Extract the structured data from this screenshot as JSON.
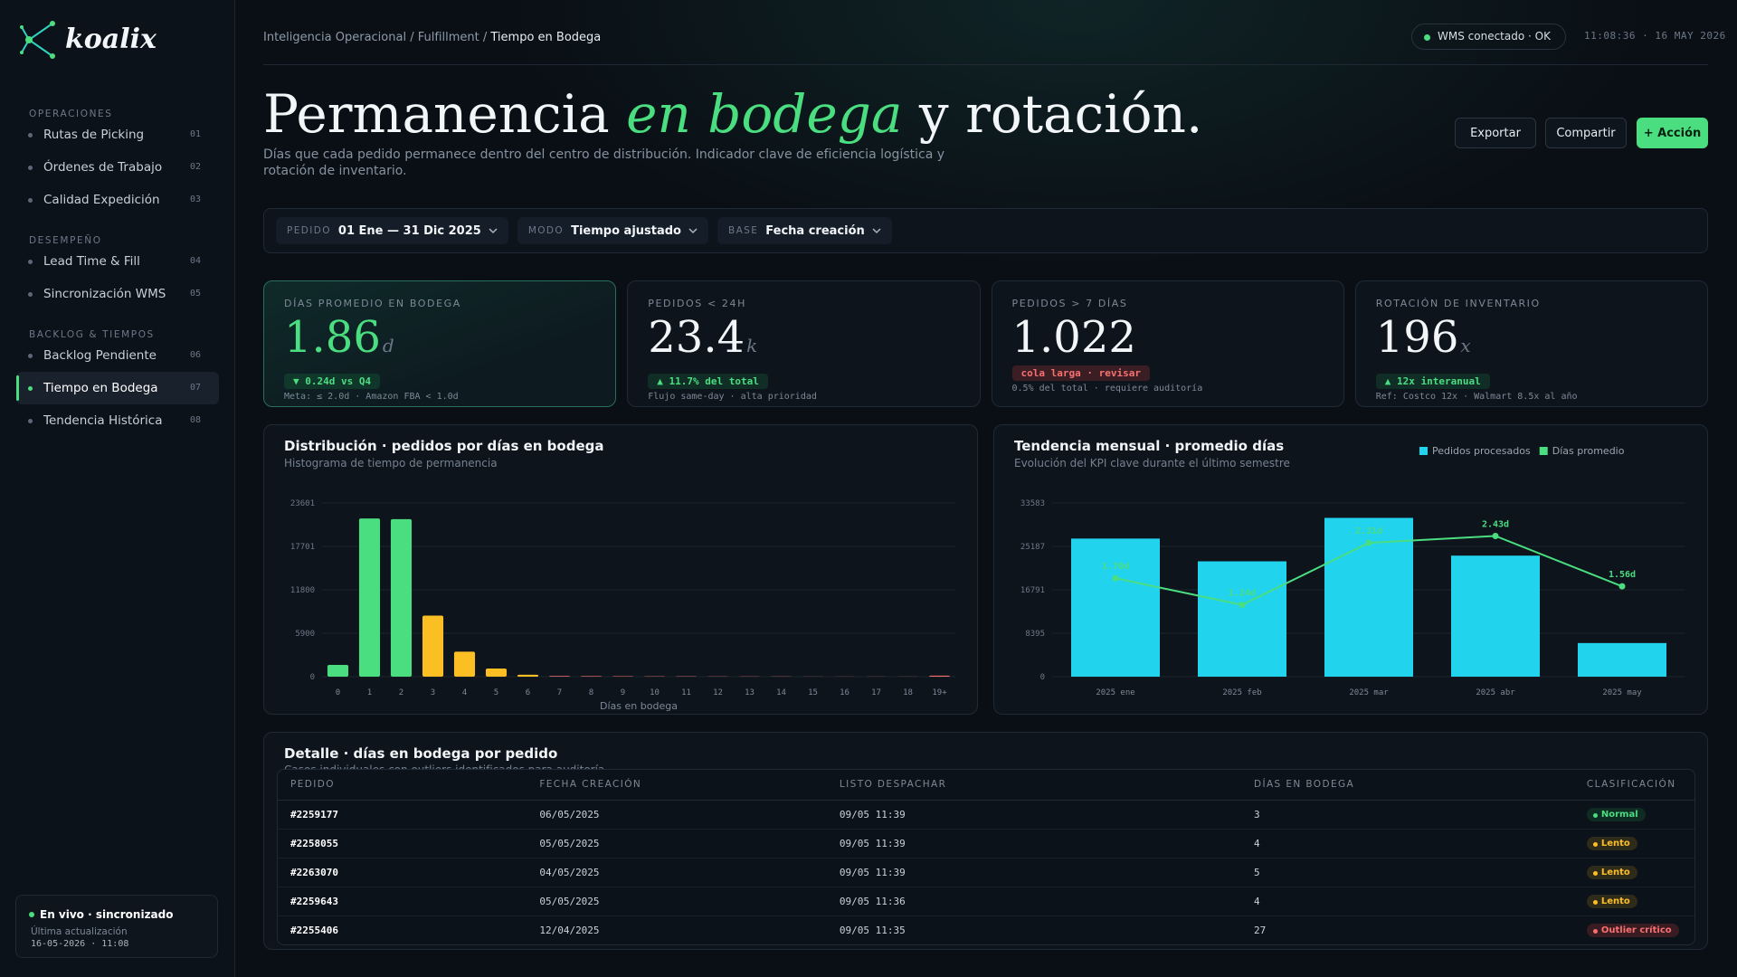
{
  "sidebar": {
    "brand": "koalix",
    "sections": [
      {
        "title": "OPERACIONES",
        "items": [
          {
            "label": "Rutas de Picking",
            "num": "01"
          },
          {
            "label": "Órdenes de Trabajo",
            "num": "02"
          },
          {
            "label": "Calidad Expedición",
            "num": "03"
          }
        ]
      },
      {
        "title": "DESEMPEÑO",
        "items": [
          {
            "label": "Lead Time & Fill",
            "num": "04"
          },
          {
            "label": "Sincronización WMS",
            "num": "05"
          }
        ]
      },
      {
        "title": "BACKLOG & TIEMPOS",
        "items": [
          {
            "label": "Backlog Pendiente",
            "num": "06"
          },
          {
            "label": "Tiempo en Bodega",
            "num": "07",
            "active": true
          },
          {
            "label": "Tendencia Histórica",
            "num": "08"
          }
        ]
      }
    ],
    "status": {
      "title": "En vivo · sincronizado",
      "label": "Última actualización",
      "time": "16-05-2026 · 11:08"
    }
  },
  "header": {
    "breadcrumb": "Inteligencia Operacional / Fulfillment / ",
    "breadcrumb_current": "Tiempo en Bodega",
    "connection": "WMS conectado · OK",
    "clock": "11:08:36 · 16 MAY 2026",
    "title": [
      "Permanencia ",
      "en bodega",
      " y rotación."
    ],
    "subtitle": "Días que cada pedido permanece dentro del centro de distribución. Indicador clave de eficiencia logística y rotación de inventario.",
    "buttons": [
      "Exportar",
      "Compartir",
      "+ Acción"
    ]
  },
  "filters": [
    {
      "label": "PEDIDO",
      "value": "01 Ene — 31 Dic 2025"
    },
    {
      "label": "MODO",
      "value": "Tiempo ajustado"
    },
    {
      "label": "BASE",
      "value": "Fecha creación"
    }
  ],
  "kpis": [
    {
      "label": "DÍAS PROMEDIO EN BODEGA",
      "value": "1.86",
      "unit": "d",
      "badge": "▼ 0.24d vs Q4",
      "tone": "good",
      "note": "Meta: ≤ 2.0d · Amazon FBA < 1.0d",
      "highlight": true
    },
    {
      "label": "PEDIDOS < 24H",
      "value": "23.4",
      "unit": "k",
      "badge": "▲ 11.7% del total",
      "tone": "good",
      "note": "Flujo same-day · alta prioridad"
    },
    {
      "label": "PEDIDOS > 7 DÍAS",
      "value": "1.022",
      "badge": "cola larga · revisar",
      "tone": "bad",
      "note": "0.5% del total · requiere auditoría"
    },
    {
      "label": "ROTACIÓN DE INVENTARIO",
      "value": "196",
      "unit": "x",
      "badge": "▲ 12x interanual",
      "tone": "good",
      "note": "Ref: Costco 12x · Walmart 8.5x al año"
    }
  ],
  "chart_data": [
    {
      "type": "bar",
      "title": "Distribución · pedidos por días en bodega",
      "subtitle": "Histograma de tiempo de permanencia",
      "xlabel": "Días en bodega",
      "categories": [
        "0",
        "1",
        "2",
        "3",
        "4",
        "5",
        "6",
        "7",
        "8",
        "9",
        "10",
        "11",
        "12",
        "13",
        "14",
        "15",
        "16",
        "17",
        "18",
        "19+"
      ],
      "values": [
        1600,
        21500,
        21400,
        8300,
        3400,
        1100,
        260,
        90,
        70,
        60,
        50,
        40,
        35,
        30,
        25,
        20,
        15,
        12,
        10,
        140
      ],
      "colors": [
        "#4ade80",
        "#4ade80",
        "#4ade80",
        "#fbbf24",
        "#fbbf24",
        "#fbbf24",
        "#fbbf24",
        "#f87171",
        "#f87171",
        "#f87171",
        "#f87171",
        "#f87171",
        "#f87171",
        "#f87171",
        "#f87171",
        "#f87171",
        "#f87171",
        "#f87171",
        "#f87171",
        "#f87171"
      ],
      "ylim": [
        0,
        23601
      ],
      "yticks": [
        0,
        5900,
        11800,
        17701,
        23601
      ],
      "grid": true
    },
    {
      "type": "combo",
      "title": "Tendencia mensual · promedio días",
      "subtitle": "Evolución del KPI clave durante el último semestre",
      "categories": [
        "2025 ene",
        "2025 feb",
        "2025 mar",
        "2025 abr",
        "2025 may"
      ],
      "series": [
        {
          "name": "Pedidos procesados",
          "kind": "bar",
          "color": "#22d3ee",
          "values": [
            26700,
            22300,
            30700,
            23400,
            6500
          ]
        },
        {
          "name": "Días promedio",
          "kind": "line",
          "axis": "y2",
          "color": "#4ade80",
          "values": [
            1.7,
            1.24,
            2.31,
            2.43,
            1.56
          ],
          "value_labels": [
            "1.70d",
            "1.24d",
            "2.31d",
            "2.43d",
            "1.56d"
          ]
        }
      ],
      "ylim": [
        0,
        33583
      ],
      "yticks": [
        0,
        8395,
        16791,
        25187,
        33583
      ],
      "y2lim": [
        0,
        3
      ],
      "grid": true,
      "legend": "top-right"
    }
  ],
  "table": {
    "title": "Detalle · días en bodega por pedido",
    "subtitle": "Casos individuales con outliers identificados para auditoría",
    "columns": [
      "PEDIDO",
      "FECHA CREACIÓN",
      "LISTO DESPACHAR",
      "DÍAS EN BODEGA",
      "CLASIFICACIÓN"
    ],
    "rows": [
      {
        "pedido": "#2259177",
        "fecha": "06/05/2025",
        "listo": "09/05 11:39",
        "dias": 3,
        "clase": "Normal",
        "tone": "good"
      },
      {
        "pedido": "#2258055",
        "fecha": "05/05/2025",
        "listo": "09/05 11:39",
        "dias": 4,
        "clase": "Lento",
        "tone": "warn"
      },
      {
        "pedido": "#2263070",
        "fecha": "04/05/2025",
        "listo": "09/05 11:39",
        "dias": 5,
        "clase": "Lento",
        "tone": "warn"
      },
      {
        "pedido": "#2259643",
        "fecha": "05/05/2025",
        "listo": "09/05 11:36",
        "dias": 4,
        "clase": "Lento",
        "tone": "warn"
      },
      {
        "pedido": "#2255406",
        "fecha": "12/04/2025",
        "listo": "09/05 11:35",
        "dias": 27,
        "clase": "Outlier crítico",
        "tone": "bad"
      }
    ]
  }
}
